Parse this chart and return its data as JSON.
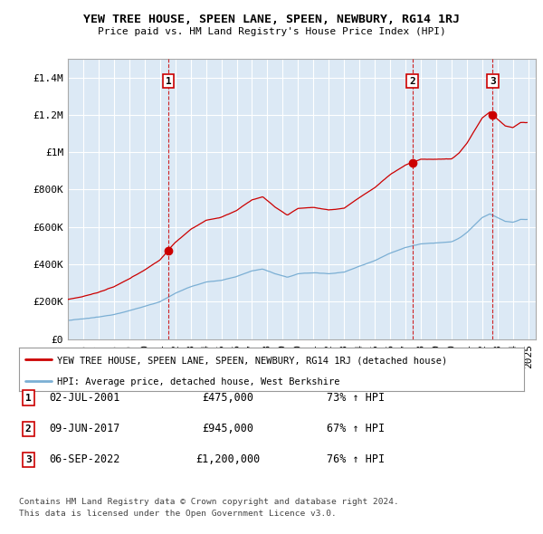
{
  "title": "YEW TREE HOUSE, SPEEN LANE, SPEEN, NEWBURY, RG14 1RJ",
  "subtitle": "Price paid vs. HM Land Registry's House Price Index (HPI)",
  "background_color": "#ffffff",
  "chart_bg_color": "#dce9f5",
  "grid_color": "#ffffff",
  "hpi_color": "#7bafd4",
  "property_color": "#cc0000",
  "dashed_color": "#cc0000",
  "transactions": [
    {
      "num": 1,
      "date_str": "02-JUL-2001",
      "price": 475000,
      "hpi_pct": "73% ↑ HPI",
      "sale_year": 2001.54
    },
    {
      "num": 2,
      "date_str": "09-JUN-2017",
      "price": 945000,
      "hpi_pct": "67% ↑ HPI",
      "sale_year": 2017.44
    },
    {
      "num": 3,
      "date_str": "06-SEP-2022",
      "price": 1200000,
      "hpi_pct": "76% ↑ HPI",
      "sale_year": 2022.68
    }
  ],
  "legend_property": "YEW TREE HOUSE, SPEEN LANE, SPEEN, NEWBURY, RG14 1RJ (detached house)",
  "legend_hpi": "HPI: Average price, detached house, West Berkshire",
  "footnote_line1": "Contains HM Land Registry data © Crown copyright and database right 2024.",
  "footnote_line2": "This data is licensed under the Open Government Licence v3.0.",
  "ylim": [
    0,
    1500000
  ],
  "yticks": [
    0,
    200000,
    400000,
    600000,
    800000,
    1000000,
    1200000,
    1400000
  ],
  "ytick_labels": [
    "£0",
    "£200K",
    "£400K",
    "£600K",
    "£800K",
    "£1M",
    "£1.2M",
    "£1.4M"
  ],
  "xlim_start": 1995.0,
  "xlim_end": 2025.5
}
